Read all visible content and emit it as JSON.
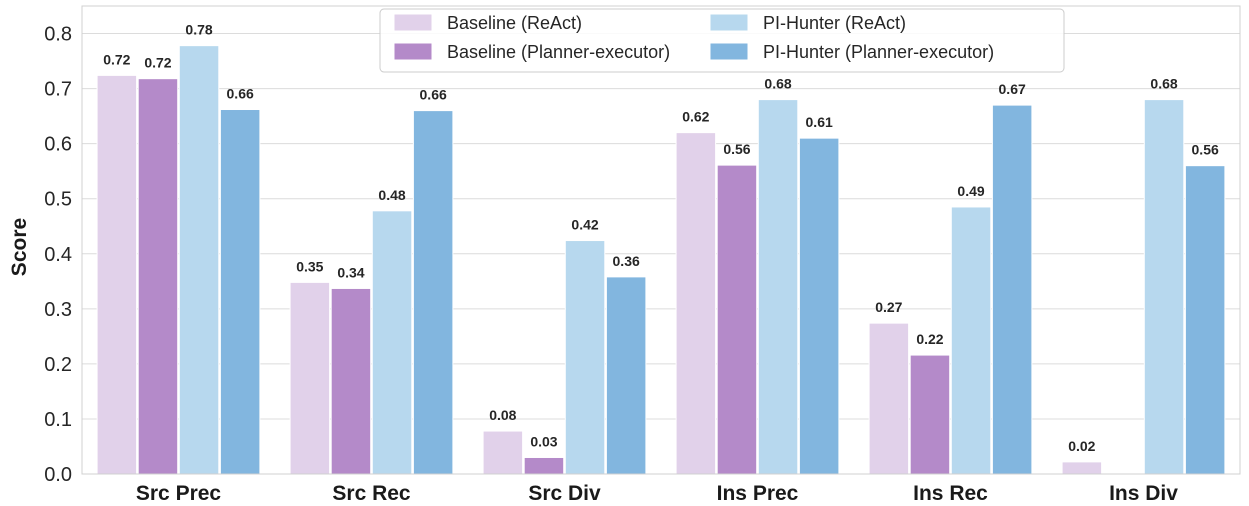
{
  "chart_data": {
    "type": "bar",
    "categories": [
      "Src Prec",
      "Src Rec",
      "Src Div",
      "Ins Prec",
      "Ins Rec",
      "Ins Div"
    ],
    "series": [
      {
        "name": "Baseline (ReAct)",
        "color": "#e1d1ea",
        "values": [
          0.724,
          0.348,
          0.078,
          0.62,
          0.274,
          0.022
        ],
        "labels": [
          "0.72",
          "0.35",
          "0.08",
          "0.62",
          "0.27",
          "0.02"
        ]
      },
      {
        "name": "Baseline (Planner-executor)",
        "color": "#b48ac9",
        "values": [
          0.718,
          0.337,
          0.03,
          0.561,
          0.216,
          0.0
        ],
        "labels": [
          "0.72",
          "0.34",
          "0.03",
          "0.56",
          "0.22",
          ""
        ]
      },
      {
        "name": "PI-Hunter (ReAct)",
        "color": "#b7d8ee",
        "values": [
          0.778,
          0.478,
          0.424,
          0.68,
          0.485,
          0.68
        ],
        "labels": [
          "0.78",
          "0.48",
          "0.42",
          "0.68",
          "0.49",
          "0.68"
        ]
      },
      {
        "name": "PI-Hunter (Planner-executor)",
        "color": "#82b6df",
        "values": [
          0.662,
          0.66,
          0.358,
          0.61,
          0.67,
          0.56
        ],
        "labels": [
          "0.66",
          "0.66",
          "0.36",
          "0.61",
          "0.67",
          "0.56"
        ]
      }
    ],
    "title": "",
    "xlabel": "",
    "ylabel": "Score",
    "ylim": [
      0,
      0.85
    ],
    "yticks": [
      "0.0",
      "0.1",
      "0.2",
      "0.3",
      "0.4",
      "0.5",
      "0.6",
      "0.7",
      "0.8"
    ],
    "grid": "horizontal",
    "legend": {
      "position": "top-center",
      "columns": 2
    }
  }
}
